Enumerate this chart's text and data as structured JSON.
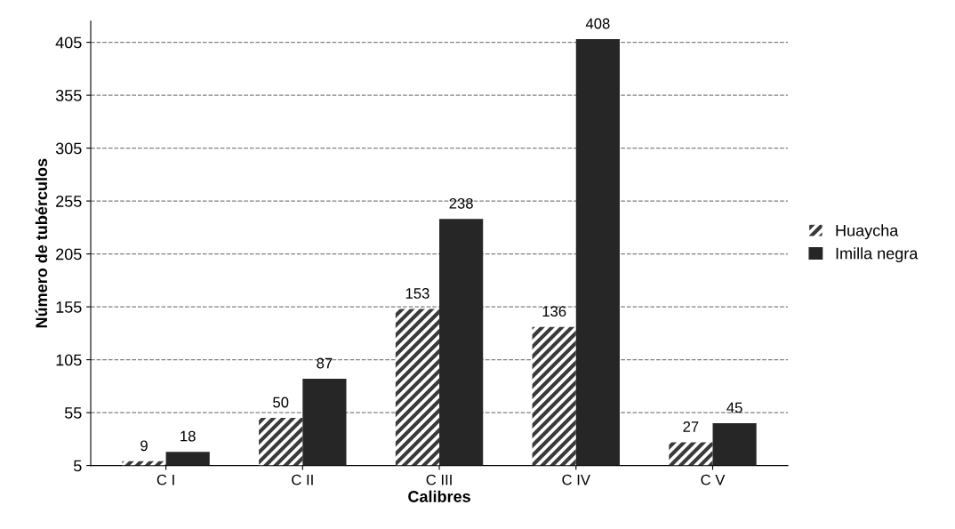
{
  "chart_data": {
    "type": "bar",
    "xlabel": "Calibres",
    "ylabel": "Número de tubérculos",
    "categories": [
      "C I",
      "C II",
      "C III",
      "C IV",
      "C V"
    ],
    "series": [
      {
        "name": "Huaycha",
        "color": "#3a3a3a",
        "values": [
          9,
          50,
          153,
          136,
          27
        ]
      },
      {
        "name": "Imilla negra",
        "color": "#262626",
        "values": [
          18,
          87,
          238,
          408,
          45
        ]
      }
    ],
    "ylim": [
      5,
      425
    ],
    "yticks": [
      5,
      55,
      105,
      155,
      205,
      255,
      305,
      355,
      405
    ],
    "grid": "y",
    "legend": "right",
    "data_labels": true
  }
}
